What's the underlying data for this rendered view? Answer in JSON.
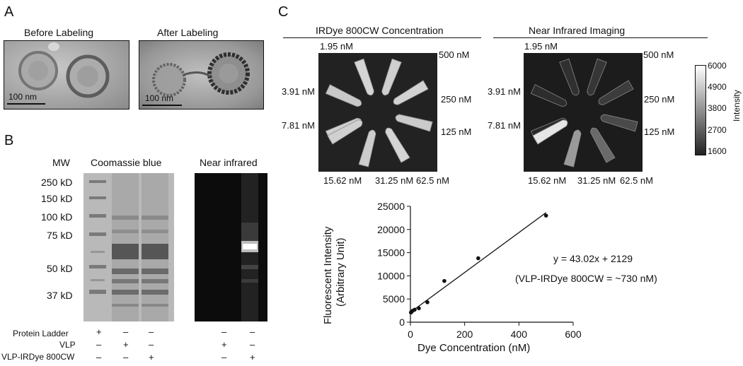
{
  "panels": {
    "a": {
      "letter": "A",
      "before_title": "Before Labeling",
      "after_title": "After Labeling",
      "scale_label": "100 nm"
    },
    "b": {
      "letter": "B",
      "mw_header": "MW",
      "coomassie_title": "Coomassie blue",
      "nir_title": "Near infrared",
      "mw_markers": [
        "250 kD",
        "150 kD",
        "100 kD",
        "75 kD",
        "50 kD",
        "37 kD"
      ],
      "conditions": [
        {
          "label": "Protein Ladder",
          "gel": [
            "+",
            "–",
            "–"
          ],
          "nir": [
            "–",
            "–"
          ]
        },
        {
          "label": "VLP",
          "gel": [
            "–",
            "+",
            "–"
          ],
          "nir": [
            "+",
            "–"
          ]
        },
        {
          "label": "VLP-IRDye 800CW",
          "gel": [
            "–",
            "–",
            "+"
          ],
          "nir": [
            "–",
            "+"
          ]
        }
      ]
    },
    "c": {
      "letter": "C",
      "left_title": "IRDye 800CW Concentration",
      "right_title": "Near Infrared Imaging",
      "conc": {
        "c1": "1.95 nM",
        "c2": "3.91 nM",
        "c3": "7.81 nM",
        "c4": "15.62 nM",
        "c5": "31.25 nM",
        "c6": "62.5 nM",
        "c7": "125 nM",
        "c8": "250 nM",
        "c9": "500 nM"
      },
      "colorbar": {
        "label": "Intensity",
        "ticks": [
          "6000",
          "4900",
          "3800",
          "2700",
          "1600"
        ]
      }
    }
  },
  "chart_data": {
    "type": "scatter",
    "xlabel": "Dye Concentration (nM)",
    "ylabel_line1": "Fluorescent Intensity",
    "ylabel_line2": "(Arbitrary Unit)",
    "xlim": [
      0,
      600
    ],
    "ylim": [
      0,
      25000
    ],
    "x_ticks": [
      0,
      200,
      400,
      600
    ],
    "y_ticks": [
      0,
      5000,
      10000,
      15000,
      20000,
      25000
    ],
    "points": [
      {
        "x": 1.95,
        "y": 2100
      },
      {
        "x": 3.91,
        "y": 2250
      },
      {
        "x": 7.81,
        "y": 2450
      },
      {
        "x": 15.62,
        "y": 2700
      },
      {
        "x": 31.25,
        "y": 3000
      },
      {
        "x": 62.5,
        "y": 4300
      },
      {
        "x": 125,
        "y": 8900
      },
      {
        "x": 250,
        "y": 13800
      },
      {
        "x": 500,
        "y": 23000
      }
    ],
    "fit": {
      "slope": 43.02,
      "intercept": 2129,
      "x_range": [
        0,
        500
      ]
    },
    "annotation_eq": "y = 43.02x + 2129",
    "annotation_note": "(VLP-IRDye 800CW = ~730 nM)",
    "grid": false,
    "legend": "none"
  }
}
